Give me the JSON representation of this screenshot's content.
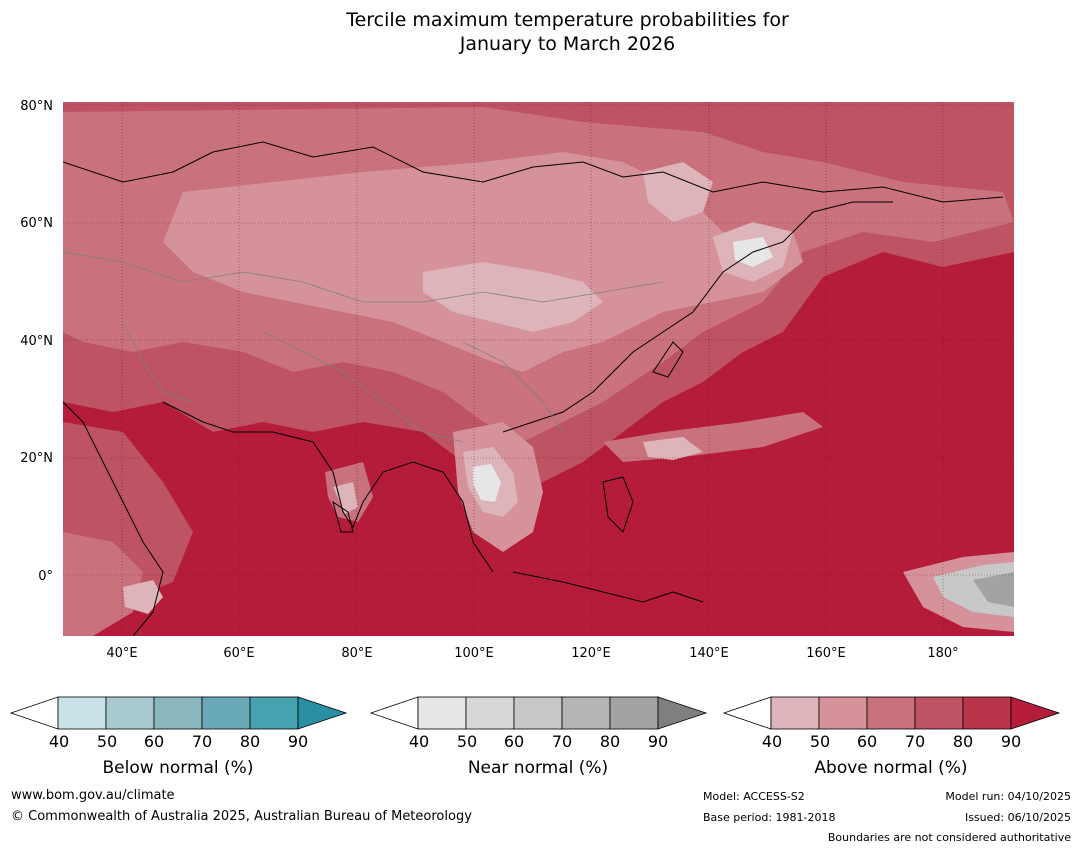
{
  "title": {
    "line1": "Tercile maximum temperature probabilities for",
    "line2": "January to March 2026"
  },
  "map": {
    "lat_labels": [
      "80°N",
      "60°N",
      "40°N",
      "20°N",
      "0°"
    ],
    "lon_labels": [
      "40°E",
      "60°E",
      "80°E",
      "100°E",
      "120°E",
      "140°E",
      "160°E",
      "180°"
    ],
    "extent": {
      "lon_min": 30,
      "lon_max": 192,
      "lat_min": -10,
      "lat_max": 81
    },
    "background_color": "#b51c3a"
  },
  "colorbars": [
    {
      "label": "Below normal (%)",
      "ticks": [
        "40",
        "50",
        "60",
        "70",
        "80",
        "90"
      ],
      "colors": [
        "#ffffff",
        "#c9e2e8",
        "#a8c9cf",
        "#8ab6c0",
        "#6aaab8",
        "#46a1b0",
        "#2a8fa3"
      ]
    },
    {
      "label": "Near normal (%)",
      "ticks": [
        "40",
        "50",
        "60",
        "70",
        "80",
        "90"
      ],
      "colors": [
        "#ffffff",
        "#e6e6e6",
        "#d7d7d7",
        "#c8c8c8",
        "#b5b5b5",
        "#a3a3a3",
        "#7f7f7f"
      ]
    },
    {
      "label": "Above normal (%)",
      "ticks": [
        "40",
        "50",
        "60",
        "70",
        "80",
        "90"
      ],
      "colors": [
        "#ffffff",
        "#deb4bb",
        "#d5929b",
        "#c9717c",
        "#bd5363",
        "#b83549",
        "#b51c3a"
      ]
    }
  ],
  "footer": {
    "website": "www.bom.gov.au/climate",
    "copyright": "© Commonwealth of Australia 2025, Australian Bureau of Meteorology",
    "model": "Model: ACCESS-S2",
    "base_period": "Base period: 1981-2018",
    "model_run": "Model run: 04/10/2025",
    "issued": "Issued: 06/10/2025",
    "disclaimer": "Boundaries are not considered authoritative"
  }
}
